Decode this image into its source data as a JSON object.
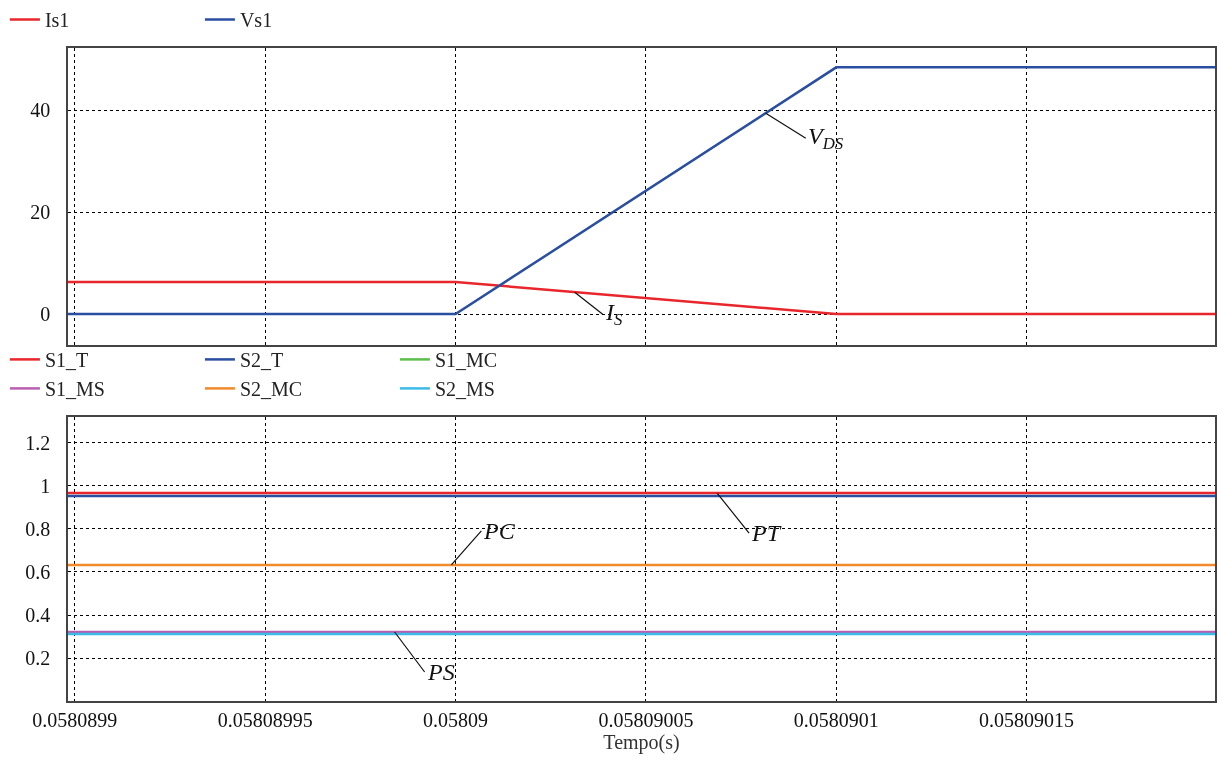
{
  "chart_data": [
    {
      "type": "line",
      "x": [
        0.0580898982,
        0.05809,
        0.0580901,
        0.0580901995
      ],
      "series": [
        {
          "name": "Is1",
          "color": "#e8262b",
          "values": [
            6.3,
            6.3,
            0,
            0
          ]
        },
        {
          "name": "Vs1",
          "color": "#2a4ea0",
          "values": [
            0,
            0,
            48.4,
            48.4
          ]
        }
      ],
      "xlim": [
        0.0580898982,
        0.0580901995
      ],
      "xticks": [
        0.0580899,
        0.05808995,
        0.05809,
        0.05809005,
        0.0580901,
        0.05809015
      ],
      "ylim": [
        -6.1,
        52.2
      ],
      "yticks": [
        0,
        20,
        40
      ],
      "grid": true,
      "legend": "top left",
      "tick_labels": "y",
      "annotations": [
        {
          "text": "V$_{DS}$",
          "x": 0.0580900815,
          "y": 39.4
        },
        {
          "text": "I$_{S}$",
          "x": 0.0580900313,
          "y": 4.3
        }
      ]
    },
    {
      "type": "line",
      "x": [
        0.0580898982,
        0.0580901995
      ],
      "series": [
        {
          "name": "S1_T",
          "color": "#e8262b",
          "values": [
            0.967,
            0.967
          ]
        },
        {
          "name": "S2_T",
          "color": "#2a4ea0",
          "values": [
            0.953,
            0.953
          ]
        },
        {
          "name": "S1_MC",
          "color": "#5bbf4a",
          "values": [
            null,
            null
          ]
        },
        {
          "name": "S1_MS",
          "color": "#b85fb0",
          "values": [
            0.321,
            0.321
          ]
        },
        {
          "name": "S2_MC",
          "color": "#f08a2a",
          "values": [
            0.633,
            0.633
          ]
        },
        {
          "name": "S2_MS",
          "color": "#3bbbe8",
          "values": [
            0.312,
            0.312
          ]
        }
      ],
      "xlim": [
        0.0580898982,
        0.0580901995
      ],
      "xticks": [
        0.0580899,
        0.05808995,
        0.05809,
        0.05809005,
        0.0580901,
        0.05809015
      ],
      "ylim": [
        0,
        1.32
      ],
      "yticks": [
        0.2,
        0.4,
        0.6,
        0.8,
        1,
        1.2
      ],
      "grid": true,
      "legend": "top left",
      "xlabel": "Tempo(s)",
      "annotations": [
        {
          "text": "PT",
          "x": 0.0580900687,
          "y": 0.967
        },
        {
          "text": "PC",
          "x": 0.0580899989,
          "y": 0.633
        },
        {
          "text": "PS",
          "x": 0.058089984,
          "y": 0.321
        }
      ]
    }
  ]
}
